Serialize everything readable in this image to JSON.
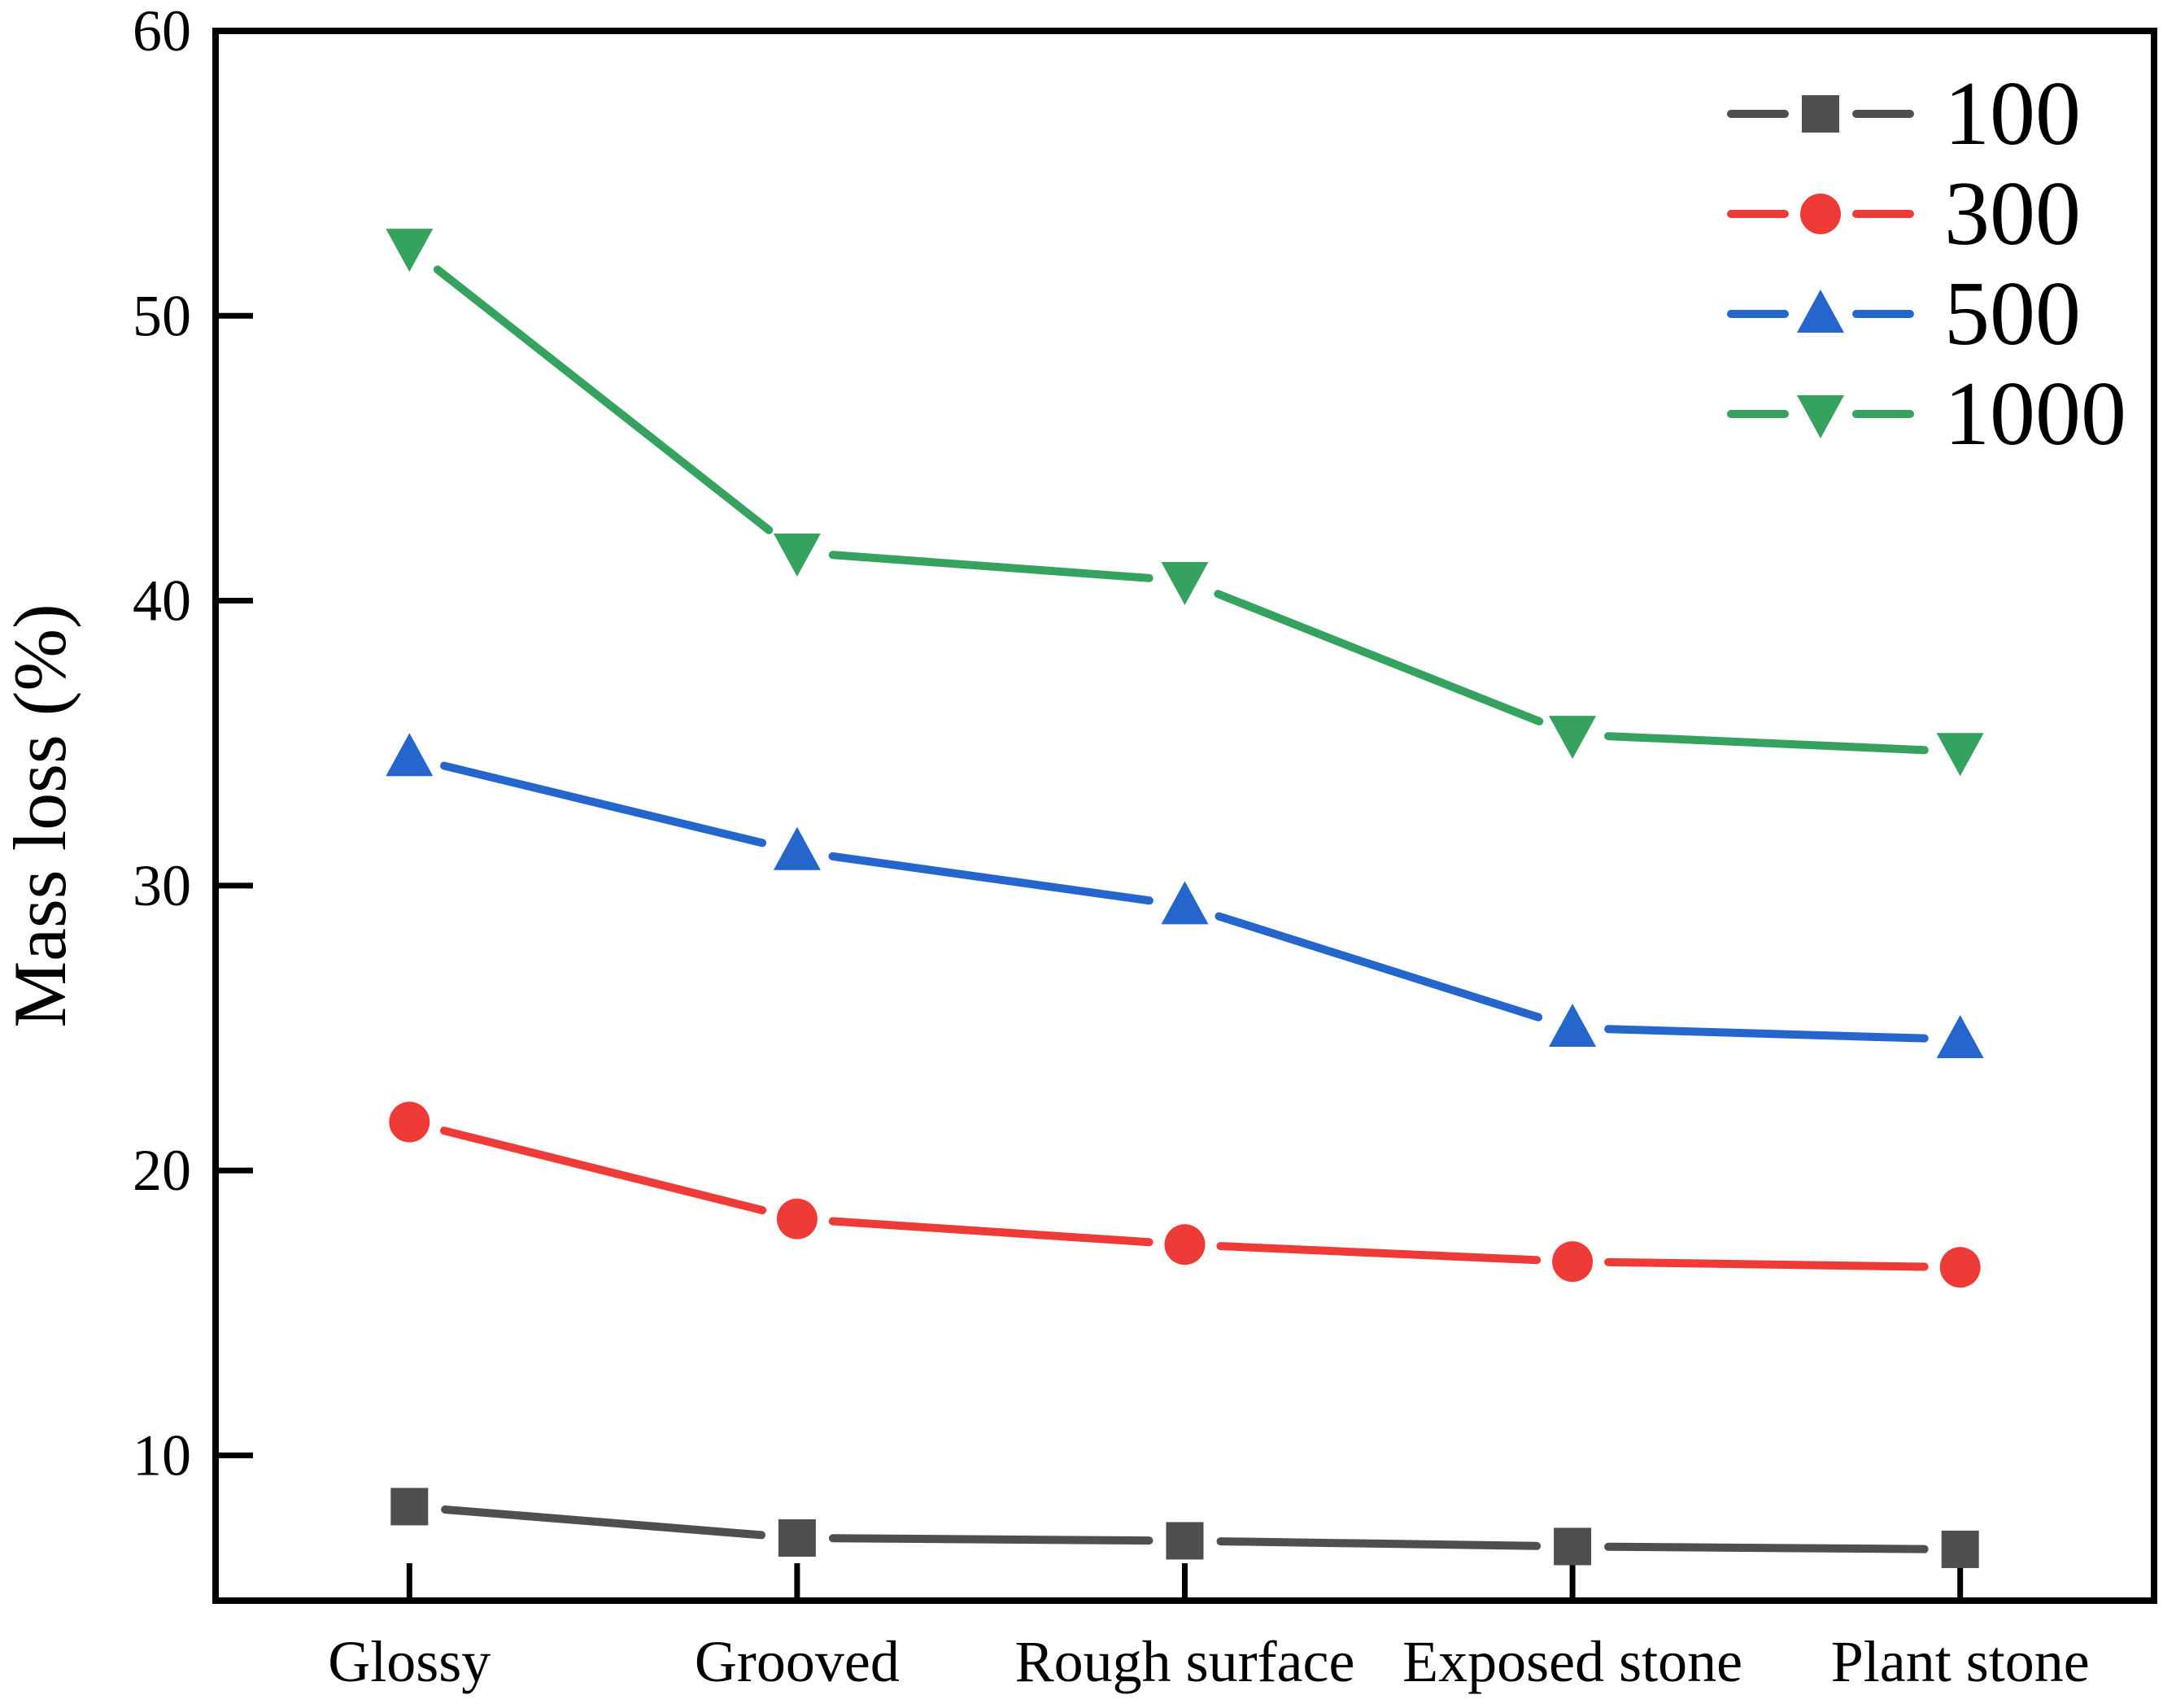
{
  "figure": {
    "background": "#ffffff",
    "axis_color": "#000000"
  },
  "chart_data": {
    "type": "line",
    "title": "",
    "xlabel": "",
    "ylabel": "Mass loss (%)",
    "categories": [
      "Glossy",
      "Grooved",
      "Rough surface",
      "Exposed stone",
      "Plant stone"
    ],
    "series": [
      {
        "name": "100",
        "color": "#4f4f4f",
        "marker": "square",
        "values": [
          8.2,
          7.1,
          7.0,
          6.8,
          6.7
        ]
      },
      {
        "name": "300",
        "color": "#ee3b38",
        "marker": "circle",
        "values": [
          21.7,
          18.3,
          17.4,
          16.8,
          16.6
        ]
      },
      {
        "name": "500",
        "color": "#2566cd",
        "marker": "triangle-up",
        "values": [
          34.5,
          31.2,
          29.3,
          25.0,
          24.6
        ]
      },
      {
        "name": "1000",
        "color": "#35a35f",
        "marker": "triangle-down",
        "values": [
          52.4,
          41.7,
          40.7,
          35.3,
          34.7
        ]
      }
    ],
    "ylim": [
      4.9,
      60
    ],
    "yticks": [
      10,
      20,
      30,
      40,
      50,
      60
    ],
    "grid": false,
    "legend_position": "top-right",
    "legend_entries": [
      "100",
      "300",
      "500",
      "1000"
    ]
  }
}
